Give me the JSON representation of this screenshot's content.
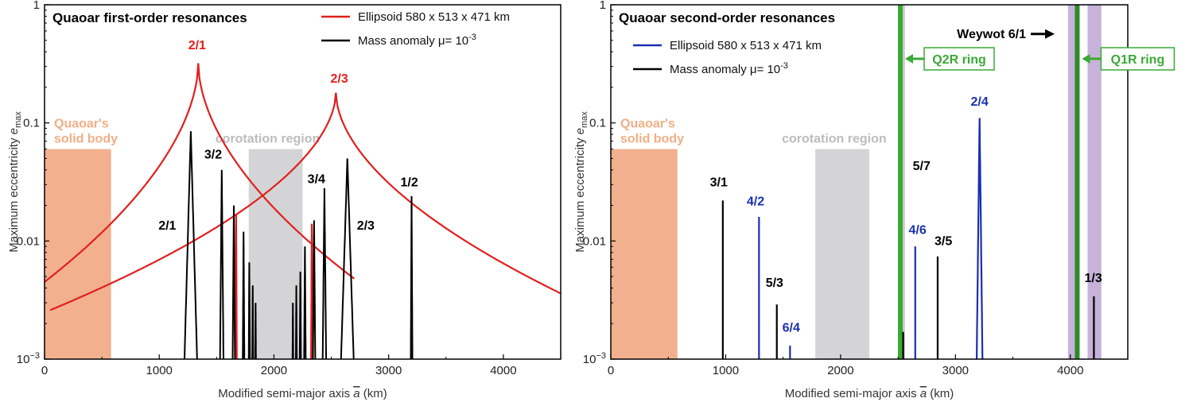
{
  "chart_data": [
    {
      "type": "line",
      "title": "Quaoar first-order resonances",
      "xlabel": "Modified semi-major axis",
      "xlabel_symbol": "a",
      "xlabel_unit": "(km)",
      "ylabel": "Maximum eccentricity",
      "ylabel_symbol": "e",
      "ylabel_sub": "max",
      "xlim": [
        0,
        4500
      ],
      "ylim": [
        0.001,
        1
      ],
      "yscale": "log",
      "xticks": [
        0,
        1000,
        2000,
        3000,
        4000
      ],
      "yticks": [
        {
          "value": 0.001,
          "label": "10",
          "sup": "−3"
        },
        {
          "value": 0.01,
          "label": "0.01"
        },
        {
          "value": 0.1,
          "label": "0.1"
        },
        {
          "value": 1,
          "label": "1"
        }
      ],
      "legend": {
        "position": "top-right",
        "items": [
          {
            "label": "Ellipsoid 580 x 513 x 471 km",
            "color": "#e0201e"
          },
          {
            "label": "Mass anomaly μ= 10",
            "sup": "-3",
            "color": "#000000"
          }
        ]
      },
      "regions": [
        {
          "label_line1": "Quaoar's",
          "label_line2": "solid body",
          "x0": 0,
          "x1": 580,
          "ytop": 0.06,
          "color": "#f2b08e",
          "text_color": "#f2ae86"
        },
        {
          "label": "corotation region",
          "x0": 1780,
          "x1": 2250,
          "ytop": 0.06,
          "color": "#d4d4d6",
          "text_color": "#bcbcbc"
        }
      ],
      "ellipsoid_curves": [
        {
          "name": "2/1",
          "center": 1340,
          "peak": 0.32,
          "side_points": [
            {
              "x": 0,
              "y": 0.0045
            },
            {
              "x": 1700,
              "y": 0.03
            },
            {
              "x": 2700,
              "y": 0.0048
            }
          ]
        },
        {
          "name": "2/3",
          "center": 2540,
          "peak": 0.18,
          "side_points": [
            {
              "x": 50,
              "y": 0.0026
            },
            {
              "x": 2300,
              "y": 0.028
            },
            {
              "x": 4500,
              "y": 0.0036
            }
          ]
        }
      ],
      "ellipsoid_spikes": [
        {
          "x": 1670,
          "y": 0.017
        },
        {
          "x": 2330,
          "y": 0.014
        }
      ],
      "mass_anomaly_peaks": [
        {
          "x": 1275,
          "y": 0.085,
          "width": 110
        },
        {
          "x": 1545,
          "y": 0.04,
          "width": 30
        },
        {
          "x": 1650,
          "y": 0.02,
          "width": 20
        },
        {
          "x": 1735,
          "y": 0.012,
          "width": 14
        },
        {
          "x": 1785,
          "y": 0.0066,
          "width": 10
        },
        {
          "x": 1815,
          "y": 0.0042,
          "width": 8
        },
        {
          "x": 1840,
          "y": 0.003,
          "width": 6
        },
        {
          "x": 2165,
          "y": 0.003,
          "width": 6
        },
        {
          "x": 2195,
          "y": 0.0042,
          "width": 8
        },
        {
          "x": 2230,
          "y": 0.0055,
          "width": 10
        },
        {
          "x": 2270,
          "y": 0.009,
          "width": 14
        },
        {
          "x": 2350,
          "y": 0.015,
          "width": 20
        },
        {
          "x": 2440,
          "y": 0.028,
          "width": 30
        },
        {
          "x": 2640,
          "y": 0.05,
          "width": 110
        },
        {
          "x": 3200,
          "y": 0.024,
          "width": 14
        }
      ],
      "annotations": [
        {
          "text": "2/1",
          "x": 1330,
          "y": 0.42,
          "color": "#e0201e"
        },
        {
          "text": "2/3",
          "x": 2570,
          "y": 0.22,
          "color": "#e0201e"
        },
        {
          "text": "3/2",
          "x": 1470,
          "y": 0.05,
          "color": "#000000"
        },
        {
          "text": "2/1",
          "x": 1070,
          "y": 0.0125,
          "color": "#000000"
        },
        {
          "text": "3/4",
          "x": 2370,
          "y": 0.031,
          "color": "#000000"
        },
        {
          "text": "2/3",
          "x": 2800,
          "y": 0.0125,
          "color": "#000000"
        },
        {
          "text": "1/2",
          "x": 3180,
          "y": 0.029,
          "color": "#000000"
        }
      ]
    },
    {
      "type": "line",
      "title": "Quaoar second-order resonances",
      "xlabel": "Modified semi-major axis",
      "xlabel_symbol": "a",
      "xlabel_unit": "(km)",
      "ylabel": "Maximum eccentricity",
      "ylabel_symbol": "e",
      "ylabel_sub": "max",
      "xlim": [
        0,
        4500
      ],
      "ylim": [
        0.001,
        1
      ],
      "yscale": "log",
      "xticks": [
        0,
        1000,
        2000,
        3000,
        4000
      ],
      "yticks": [
        {
          "value": 0.001,
          "label": "10",
          "sup": "−3"
        },
        {
          "value": 0.01,
          "label": "0.01"
        },
        {
          "value": 0.1,
          "label": "0.1"
        },
        {
          "value": 1,
          "label": "1"
        }
      ],
      "legend": {
        "position": "top-left",
        "items": [
          {
            "label": "Ellipsoid 580 x 513 x 471 km",
            "color": "#1a2fb0"
          },
          {
            "label": "Mass anomaly μ= 10",
            "sup": "-3",
            "color": "#000000"
          }
        ]
      },
      "regions": [
        {
          "label_line1": "Quaoar's",
          "label_line2": "solid body",
          "x0": 0,
          "x1": 580,
          "ytop": 0.06,
          "color": "#f2b08e",
          "text_color": "#f2ae86"
        },
        {
          "label": "corotation region",
          "x0": 1780,
          "x1": 2250,
          "ytop": 0.06,
          "color": "#d4d4d6",
          "text_color": "#bcbcbc"
        }
      ],
      "bands": [
        {
          "x0": 2525,
          "x1": 2560,
          "color": "#c9c9cb"
        },
        {
          "x0": 3980,
          "x1": 4040,
          "color": "#c7b2d9"
        },
        {
          "x0": 4150,
          "x1": 4270,
          "color": "#c7b2d9"
        }
      ],
      "rings": [
        {
          "name": "Q2R ring",
          "x": 2520,
          "color": "#3aa935"
        },
        {
          "name": "Q1R  ring",
          "x": 4060,
          "color": "#2d8a2a"
        }
      ],
      "ellipsoid_spikes": [
        {
          "x": 1290,
          "y": 0.016
        },
        {
          "x": 1560,
          "y": 0.0013
        },
        {
          "x": 2650,
          "y": 0.009
        }
      ],
      "ellipsoid_peak": {
        "x": 3210,
        "y": 0.11,
        "width": 50
      },
      "mass_anomaly_spikes": [
        {
          "x": 975,
          "y": 0.022
        },
        {
          "x": 1445,
          "y": 0.0029
        },
        {
          "x": 2545,
          "y": 0.0017
        },
        {
          "x": 2845,
          "y": 0.0074
        },
        {
          "x": 4205,
          "y": 0.0034
        }
      ],
      "annotations": [
        {
          "text": "3/1",
          "x": 940,
          "y": 0.029,
          "color": "#000000"
        },
        {
          "text": "4/2",
          "x": 1260,
          "y": 0.02,
          "color": "#1a2fb0"
        },
        {
          "text": "5/3",
          "x": 1425,
          "y": 0.0041,
          "color": "#000000"
        },
        {
          "text": "6/4",
          "x": 1570,
          "y": 0.0017,
          "color": "#1a2fb0"
        },
        {
          "text": "5/7",
          "x": 2705,
          "y": 0.04,
          "color": "#000000"
        },
        {
          "text": "4/6",
          "x": 2670,
          "y": 0.0115,
          "color": "#1a2fb0"
        },
        {
          "text": "3/5",
          "x": 2895,
          "y": 0.0092,
          "color": "#000000"
        },
        {
          "text": "2/4",
          "x": 3210,
          "y": 0.14,
          "color": "#1a2fb0"
        },
        {
          "text": "1/3",
          "x": 4200,
          "y": 0.0045,
          "color": "#000000"
        }
      ],
      "weywot": {
        "label": "Weywot 6/1",
        "x": 3960,
        "y": 0.5
      }
    }
  ]
}
